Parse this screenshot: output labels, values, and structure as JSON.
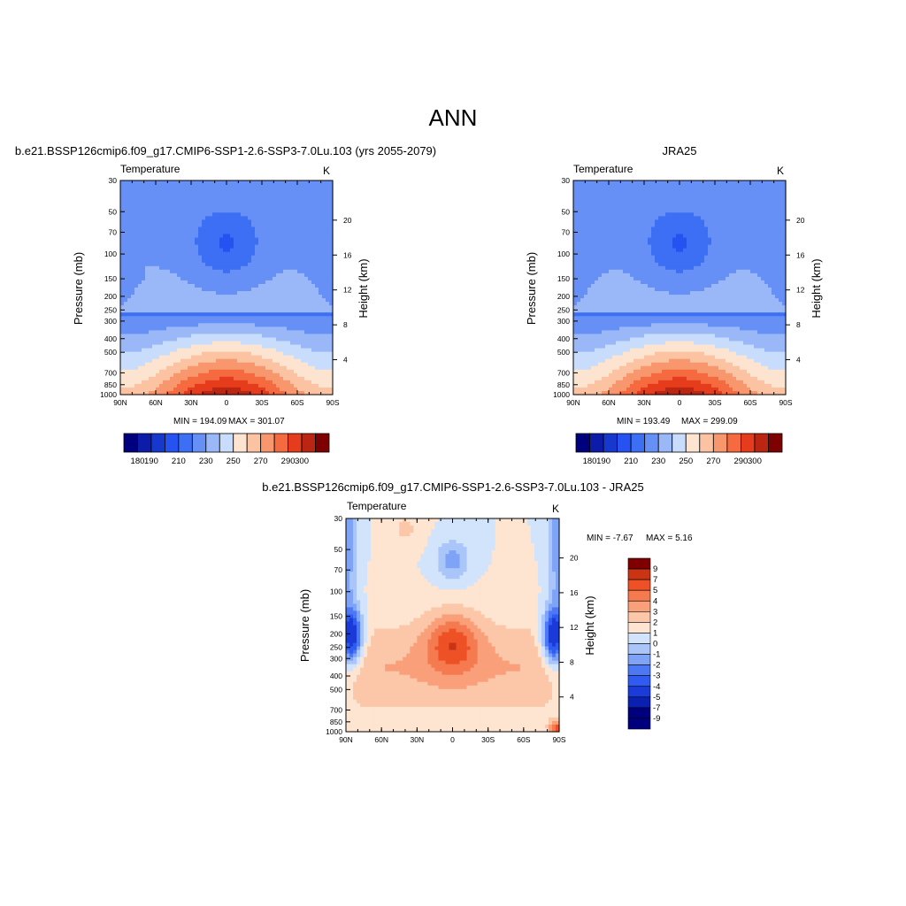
{
  "figure_title": "ANN",
  "chart_data": [
    {
      "type": "contour",
      "id": "model",
      "title": "b.e21.BSSP126cmip6.f09_g17.CMIP6-SSP1-2.6-SSP3-7.0Lu.103 (yrs 2055-2079)",
      "variable": "Temperature",
      "units": "K",
      "ylabel": "Pressure (mb)",
      "y2label": "Height (km)",
      "xticks": [
        "90N",
        "60N",
        "30N",
        "0",
        "30S",
        "60S",
        "90S"
      ],
      "x_range": [
        90,
        -90
      ],
      "yticks": [
        "30",
        "50",
        "70",
        "100",
        "150",
        "200",
        "250",
        "300",
        "400",
        "500",
        "700",
        "850",
        "1000"
      ],
      "y_range_mb": [
        1000,
        30
      ],
      "y_scale": "log",
      "y2ticks": [
        "4",
        "8",
        "12",
        "16",
        "20"
      ],
      "min_text": "MIN = 194.09",
      "max_text": "MAX = 301.07",
      "colorbar_levels": [
        "180",
        "190",
        "200",
        "210",
        "220",
        "230",
        "240",
        "250",
        "260",
        "270",
        "280",
        "290",
        "300"
      ],
      "colorbar_labels": [
        "180",
        "190",
        "210",
        "230",
        "250",
        "270",
        "290",
        "300"
      ],
      "colorbar_orientation": "horizontal",
      "field": {
        "tropopause_min_k": 194.09,
        "surface_max_k": 301.07,
        "region_at_upper_left": "small bump near 60N"
      }
    },
    {
      "type": "contour",
      "id": "obs",
      "title": "JRA25",
      "variable": "Temperature",
      "units": "K",
      "ylabel": "Pressure (mb)",
      "y2label": "Height (km)",
      "xticks": [
        "90N",
        "60N",
        "30N",
        "0",
        "30S",
        "60S",
        "90S"
      ],
      "x_range": [
        90,
        -90
      ],
      "yticks": [
        "30",
        "50",
        "70",
        "100",
        "150",
        "200",
        "250",
        "300",
        "400",
        "500",
        "700",
        "850",
        "1000"
      ],
      "y_range_mb": [
        1000,
        30
      ],
      "y_scale": "log",
      "y2ticks": [
        "4",
        "8",
        "12",
        "16",
        "20"
      ],
      "min_text": "MIN = 193.49",
      "max_text": "MAX = 299.09",
      "colorbar_levels": [
        "180",
        "190",
        "200",
        "210",
        "220",
        "230",
        "240",
        "250",
        "260",
        "270",
        "280",
        "290",
        "300"
      ],
      "colorbar_labels": [
        "180",
        "190",
        "210",
        "230",
        "250",
        "270",
        "290",
        "300"
      ],
      "colorbar_orientation": "horizontal"
    },
    {
      "type": "contour",
      "id": "diff",
      "title": "b.e21.BSSP126cmip6.f09_g17.CMIP6-SSP1-2.6-SSP3-7.0Lu.103 - JRA25",
      "variable": "Temperature",
      "units": "K",
      "ylabel": "Pressure (mb)",
      "y2label": "Height (km)",
      "xticks": [
        "90N",
        "60N",
        "30N",
        "0",
        "30S",
        "60S",
        "90S"
      ],
      "x_range": [
        90,
        -90
      ],
      "yticks": [
        "30",
        "50",
        "70",
        "100",
        "150",
        "200",
        "250",
        "300",
        "400",
        "500",
        "700",
        "850",
        "1000"
      ],
      "y_range_mb": [
        1000,
        30
      ],
      "y_scale": "log",
      "y2ticks": [
        "4",
        "8",
        "12",
        "16",
        "20"
      ],
      "min_text": "MIN =  -7.67",
      "max_text": "MAX =   5.16",
      "colorbar_levels": [
        "9",
        "7",
        "5",
        "4",
        "3",
        "2",
        "1",
        "0",
        "-1",
        "-2",
        "-3",
        "-4",
        "-5",
        "-7",
        "-9"
      ],
      "colorbar_labels": [
        "9",
        "7",
        "5",
        "4",
        "3",
        "2",
        "1",
        "0",
        "-1",
        "-2",
        "-3",
        "-4",
        "-5",
        "-7",
        "-9"
      ],
      "colorbar_orientation": "vertical"
    }
  ],
  "colors": {
    "temp_scale": [
      "#00007f",
      "#0c1ba8",
      "#1638cc",
      "#2552f0",
      "#3d6ff5",
      "#6690f6",
      "#9ab8f8",
      "#c8dcfb",
      "#fde4d0",
      "#fcc3a3",
      "#f8976d",
      "#f56a3f",
      "#e43c1c",
      "#bb2613",
      "#7f0000"
    ],
    "diff_scale": [
      "#00007f",
      "#0a20b0",
      "#1a3bd8",
      "#2f5bf0",
      "#4d78f4",
      "#7fa3f6",
      "#aac6f9",
      "#d2e4fb",
      "#fde5d2",
      "#fcc7a8",
      "#f9a07a",
      "#f67a50",
      "#ee5125",
      "#c83414",
      "#7f0000"
    ]
  }
}
